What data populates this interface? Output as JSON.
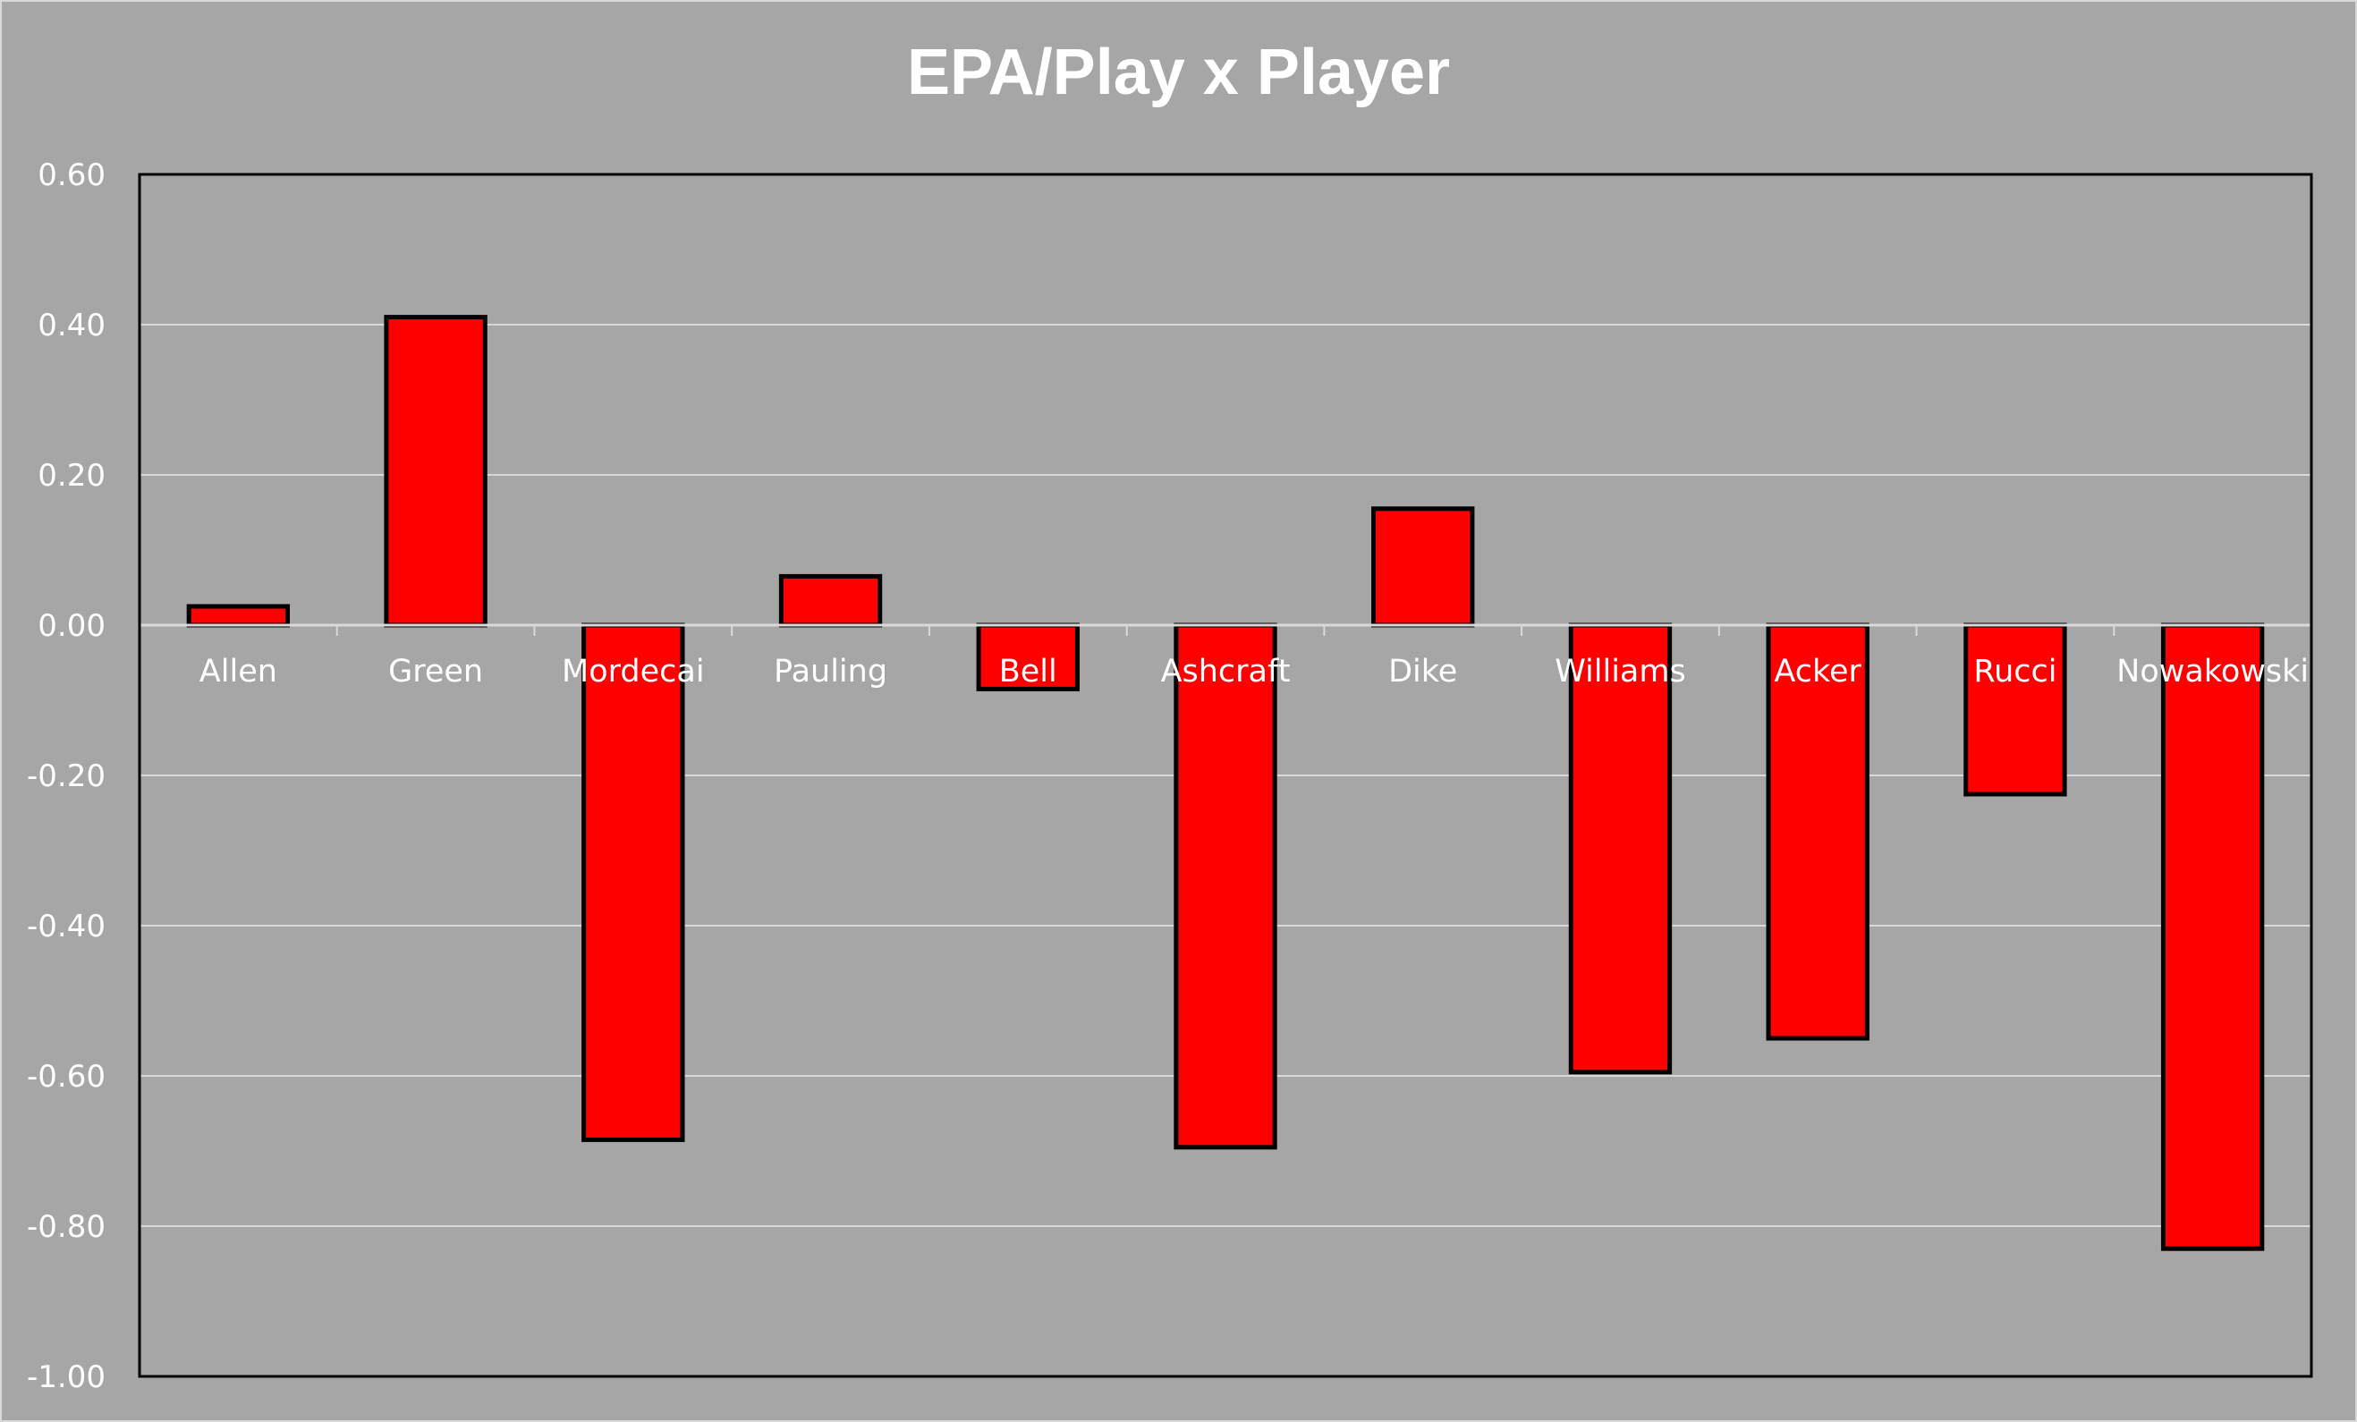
{
  "chart_data": {
    "type": "bar",
    "title": "EPA/Play x Player",
    "xlabel": "",
    "ylabel": "",
    "categories": [
      "Allen",
      "Green",
      "Mordecai",
      "Pauling",
      "Bell",
      "Ashcraft",
      "Dike",
      "Williams",
      "Acker",
      "Rucci",
      "Nowakowski"
    ],
    "values": [
      0.025,
      0.41,
      -0.685,
      0.065,
      -0.085,
      -0.695,
      0.155,
      -0.595,
      -0.55,
      -0.225,
      -0.83
    ],
    "ylim": [
      -1.0,
      0.6
    ],
    "yticks": [
      "0.60",
      "0.40",
      "0.20",
      "0.00",
      "-0.20",
      "-0.40",
      "-0.60",
      "-0.80",
      "-1.00"
    ],
    "grid": true,
    "legend": "none",
    "colors": {
      "bar_fill": "#ff0000",
      "bar_stroke": "#000000",
      "background": "#a6a6a6",
      "gridline": "#d9d9d9",
      "text": "#ffffff"
    }
  }
}
